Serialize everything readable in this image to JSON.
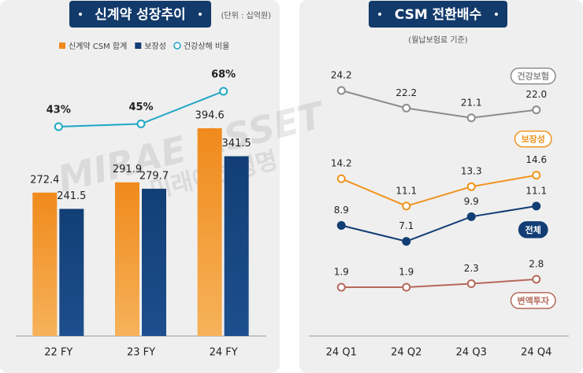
{
  "chart_data": [
    {
      "type": "bar",
      "title": "신계약 성장추이",
      "unit": "(단위 : 십억원)",
      "categories": [
        "22 FY",
        "23 FY",
        "24 FY"
      ],
      "series": [
        {
          "name": "신계약 CSM 합계",
          "color": "#f08a1c",
          "values": [
            272.4,
            291.9,
            394.6
          ]
        },
        {
          "name": "보장성",
          "color": "#123e75",
          "values": [
            241.5,
            279.7,
            341.5
          ]
        },
        {
          "name": "건강상해 비율",
          "type": "line",
          "color": "#1fa6c4",
          "values": [
            43,
            45,
            68
          ],
          "value_labels": [
            "43%",
            "45%",
            "68%"
          ]
        }
      ]
    },
    {
      "type": "line",
      "title": "CSM 전환배수",
      "subtitle": "(월납보험료 기준)",
      "categories": [
        "24 Q1",
        "24 Q2",
        "24 Q3",
        "24 Q4"
      ],
      "series": [
        {
          "name": "건강보험",
          "color": "#8c8c8c",
          "values": [
            24.2,
            22.2,
            21.1,
            22.0
          ],
          "value_labels": [
            "24.2",
            "22.2",
            "21.1",
            "22.0"
          ]
        },
        {
          "name": "보장성",
          "color": "#f0931e",
          "values": [
            14.2,
            11.1,
            13.3,
            14.6
          ],
          "value_labels": [
            "14.2",
            "11.1",
            "13.3",
            "14.6"
          ]
        },
        {
          "name": "전체",
          "color": "#123e75",
          "values": [
            8.9,
            7.1,
            9.9,
            11.1
          ],
          "value_labels": [
            "8.9",
            "7.1",
            "9.9",
            "11.1"
          ]
        },
        {
          "name": "변액투자",
          "color": "#b5695a",
          "values": [
            1.9,
            1.9,
            2.3,
            2.8
          ],
          "value_labels": [
            "1.9",
            "1.9",
            "2.3",
            "2.8"
          ]
        }
      ]
    }
  ],
  "watermark": {
    "brand": "MIRAE ASSET",
    "name": "미래에셋생명"
  }
}
